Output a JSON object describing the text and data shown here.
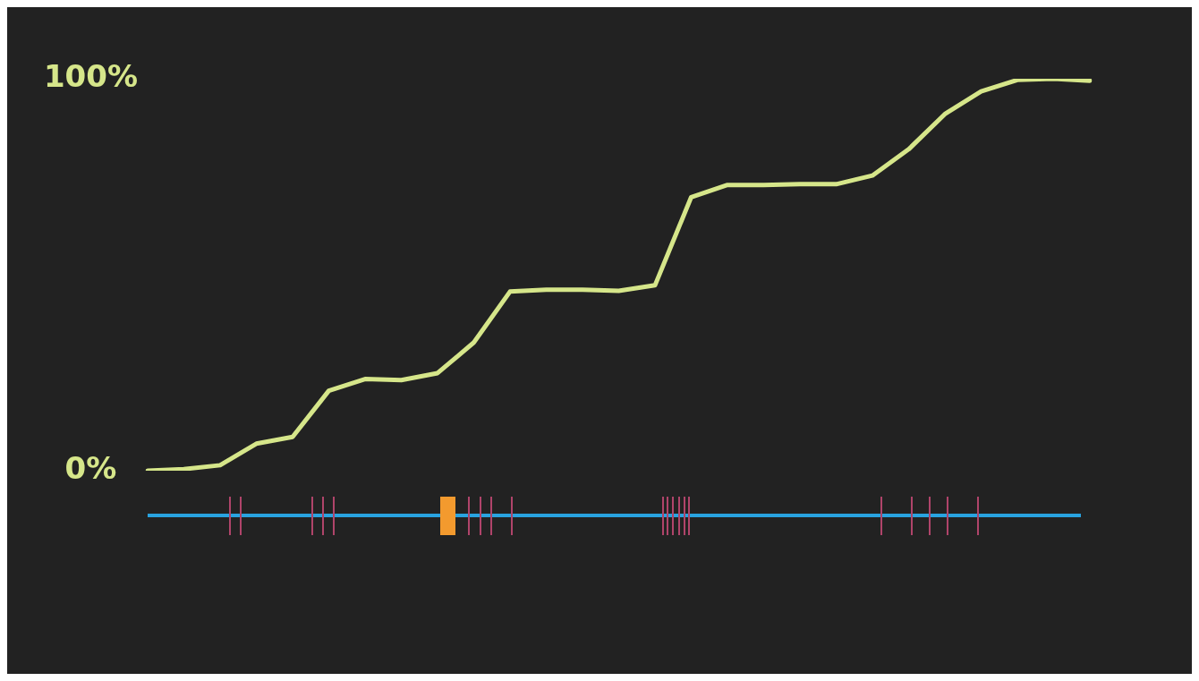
{
  "chart_data": {
    "type": "line",
    "categories": [
      null,
      null,
      null,
      null,
      null,
      null,
      null,
      null,
      null,
      null,
      null,
      null,
      null,
      null,
      null,
      null,
      null,
      null,
      null,
      null,
      null,
      null,
      null,
      null,
      null,
      null,
      null
    ],
    "ylim": [
      0,
      100
    ],
    "yticks": [
      {
        "value": 0,
        "label": "0%"
      },
      {
        "value": 100,
        "label": "100%"
      }
    ],
    "grid": false,
    "legend": false,
    "marker": "none",
    "line_style": "solid",
    "series": [
      {
        "color": "#d6e68a",
        "values": [
          0,
          0.4,
          1.4,
          6.9,
          8.6,
          20.4,
          23.4,
          23.1,
          24.9,
          32.7,
          45.7,
          46.2,
          46.2,
          45.9,
          47.3,
          69.8,
          72.9,
          72.9,
          73.1,
          73.1,
          75.3,
          82.0,
          91.0,
          96.8,
          99.7,
          100,
          99.5
        ]
      }
    ]
  }
}
